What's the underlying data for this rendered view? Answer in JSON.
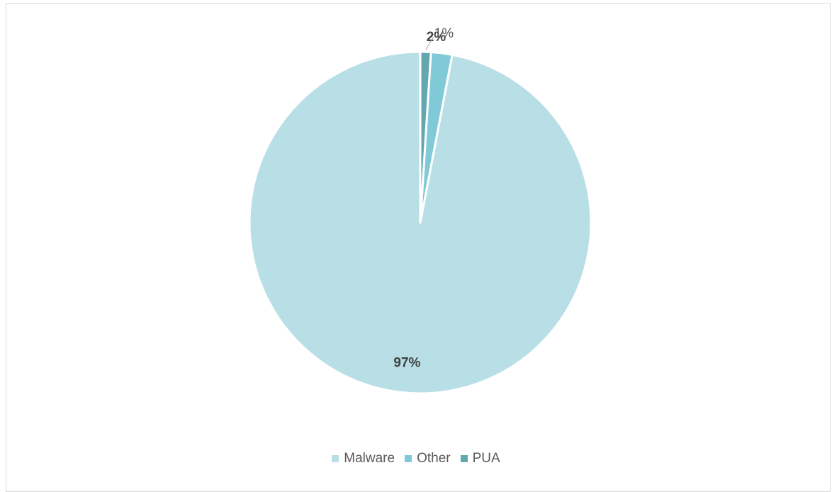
{
  "chart_data": {
    "type": "pie",
    "title": "",
    "categories": [
      "Malware",
      "Other",
      "PUA"
    ],
    "values": [
      97,
      2,
      1
    ],
    "data_labels": [
      "97%",
      "2%",
      "1%"
    ],
    "colors": [
      "#b9dfe6",
      "#7fcad6",
      "#63a7b1"
    ],
    "legend": {
      "placement": "bottom",
      "entries": [
        "Malware",
        "Other",
        "PUA"
      ]
    },
    "start_angle_deg": 0,
    "direction": "counterclockwise"
  }
}
